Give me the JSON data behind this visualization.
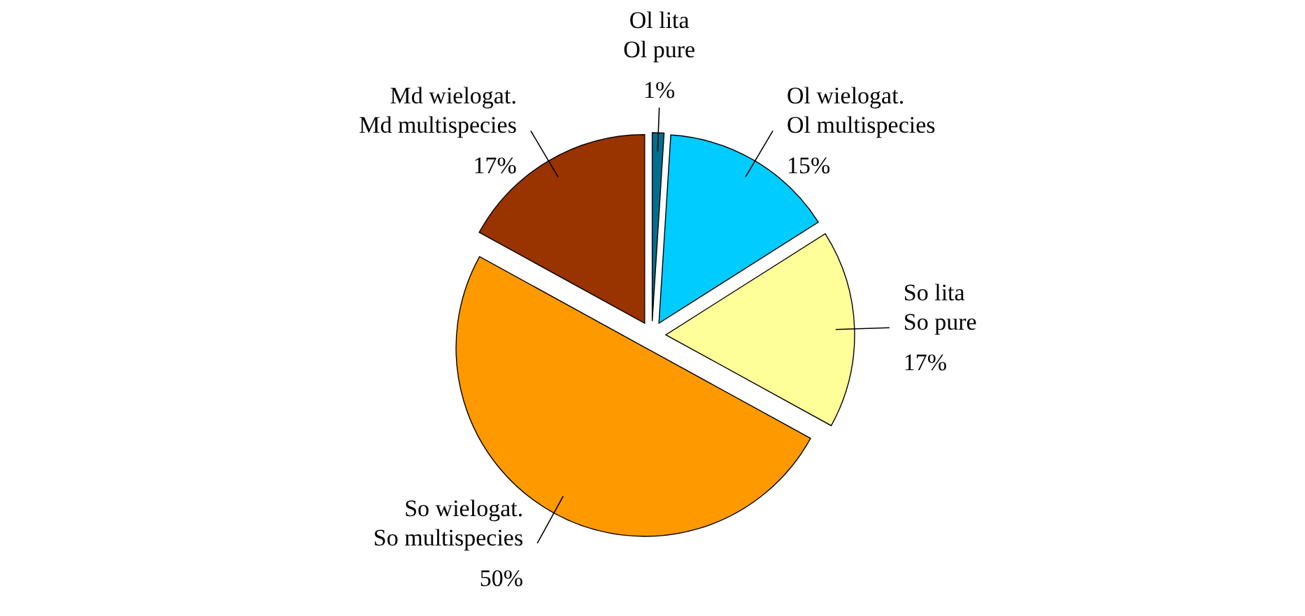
{
  "chart_data": {
    "type": "pie",
    "categories": [
      "Md wielogat.\nMd multispecies",
      "Ol lita\nOl pure",
      "Ol wielogat.\nOl multispecies",
      "So lita\nSo pure",
      "So wielogat.\nSo multispecies"
    ],
    "values": [
      17,
      1,
      15,
      17,
      50
    ],
    "value_labels": [
      "17%",
      "1%",
      "15%",
      "17%",
      "50%"
    ],
    "colors": [
      "#993300",
      "#006f8f",
      "#00ccff",
      "#ffff99",
      "#ff9900"
    ]
  }
}
